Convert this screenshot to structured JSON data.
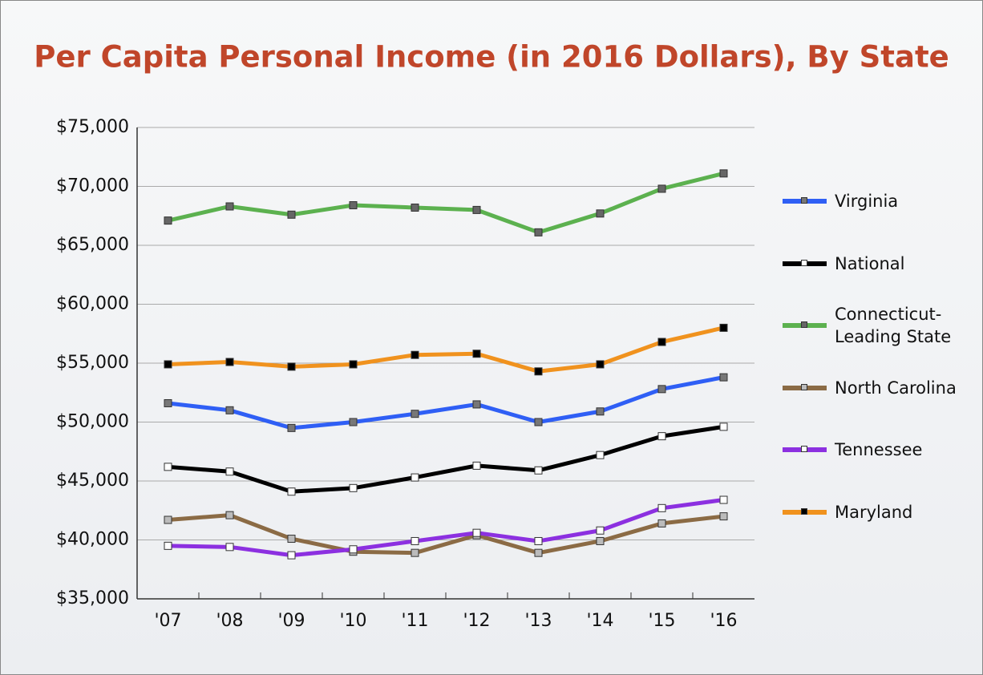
{
  "chart_data": {
    "type": "line",
    "title": "Per Capita Personal Income (in 2016 Dollars), By State",
    "categories": [
      "'07",
      "'08",
      "'09",
      "'10",
      "'11",
      "'12",
      "'13",
      "'14",
      "'15",
      "'16"
    ],
    "series": [
      {
        "name": "Virginia",
        "color": "#2f5ff5",
        "marker": "#777777",
        "values": [
          51600,
          51000,
          49500,
          50000,
          50700,
          51500,
          50000,
          50900,
          52800,
          53800
        ]
      },
      {
        "name": "National",
        "color": "#000000",
        "marker": "#ffffff",
        "values": [
          46200,
          45800,
          44100,
          44400,
          45300,
          46300,
          45900,
          47200,
          48800,
          49600
        ]
      },
      {
        "name": "Connecticut-Leading State",
        "color": "#5cb14f",
        "marker": "#666666",
        "values": [
          67100,
          68300,
          67600,
          68400,
          68200,
          68000,
          66100,
          67700,
          69800,
          71100
        ]
      },
      {
        "name": "North Carolina",
        "color": "#8b6b45",
        "marker": "#bbbbbb",
        "values": [
          41700,
          42100,
          40100,
          39000,
          38900,
          40400,
          38900,
          39900,
          41400,
          42000
        ]
      },
      {
        "name": "Tennessee",
        "color": "#8c30e0",
        "marker": "#ffffff",
        "values": [
          39500,
          39400,
          38700,
          39200,
          39900,
          40600,
          39900,
          40800,
          42700,
          43400
        ]
      },
      {
        "name": "Maryland",
        "color": "#f0921e",
        "marker": "#000000",
        "values": [
          54900,
          55100,
          54700,
          54900,
          55700,
          55800,
          54300,
          54900,
          56800,
          58000
        ]
      }
    ],
    "ylim": [
      35000,
      75000
    ],
    "yticks": [
      {
        "value": 35000,
        "label": "$35,000"
      },
      {
        "value": 40000,
        "label": "$40,000"
      },
      {
        "value": 45000,
        "label": "$45,000"
      },
      {
        "value": 50000,
        "label": "$50,000"
      },
      {
        "value": 55000,
        "label": "$55,000"
      },
      {
        "value": 60000,
        "label": "$60,000"
      },
      {
        "value": 65000,
        "label": "$65,000"
      },
      {
        "value": 70000,
        "label": "$70,000"
      },
      {
        "value": 75000,
        "label": "$75,000"
      }
    ],
    "grid": true,
    "legend": "right"
  }
}
